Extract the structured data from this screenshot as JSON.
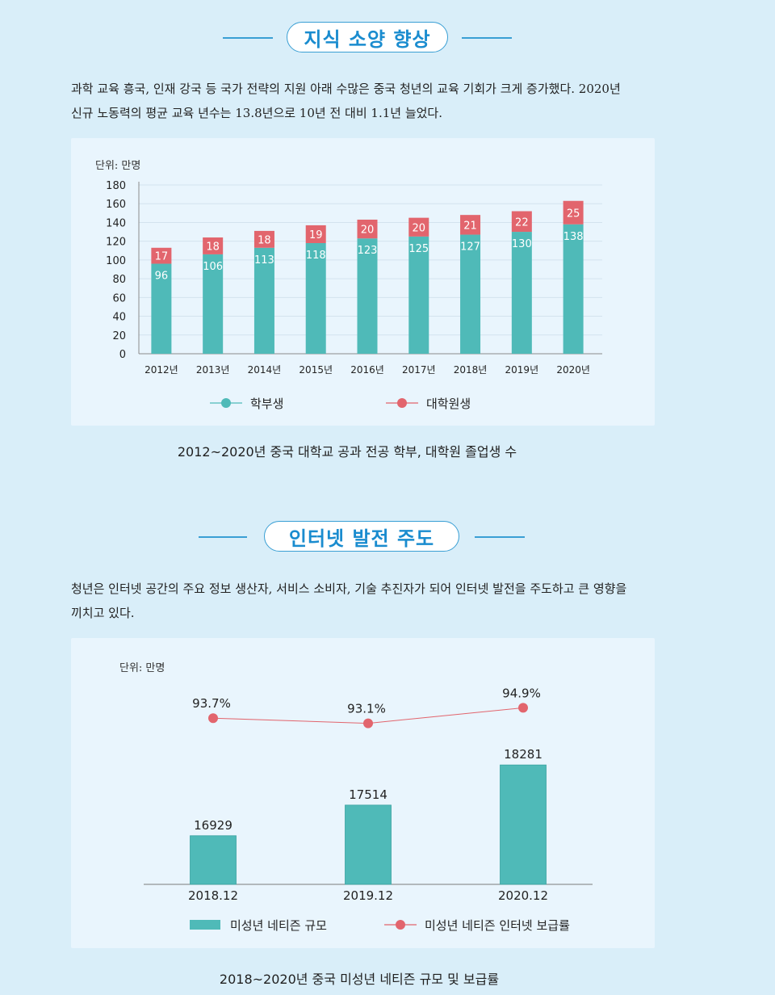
{
  "section1": {
    "title": "지식 소양 향상",
    "paragraph_lines": [
      "과학 교육 흥국, 인재 강국 등 국가 전략의 지원 아래 수많은 중국 청년의 교육 기회가 크게 증가했다. 2020년",
      "신규 노동력의 평균 교육 년수는 13.8년으로 10년 전 대비 1.1년 늘었다."
    ],
    "unit": "단위: 만명",
    "caption": "2012~2020년 중국 대학교 공과 전공 학부, 대학원 졸업생 수"
  },
  "section2": {
    "title": "인터넷 발전 주도",
    "paragraph_lines": [
      "청년은 인터넷 공간의 주요 정보 생산자, 서비스 소비자, 기술 추진자가 되어 인터넷 발전을 주도하고 큰 영향을",
      "끼치고 있다."
    ],
    "unit": "단위: 만명",
    "caption": "2018~2020년 중국 미성년 네티즌 규모 및 보급률"
  },
  "colors": {
    "teal": "#4fbab8",
    "red": "#e2656d",
    "accent_blue": "#1a8ccf"
  },
  "chart_data": [
    {
      "type": "bar",
      "stacked": true,
      "categories": [
        "2012년",
        "2013년",
        "2014년",
        "2015년",
        "2016년",
        "2017년",
        "2018년",
        "2019년",
        "2020년"
      ],
      "series": [
        {
          "name": "학부생",
          "values": [
            96,
            106,
            113,
            118,
            123,
            125,
            127,
            130,
            138
          ]
        },
        {
          "name": "대학원생",
          "values": [
            17,
            18,
            18,
            19,
            20,
            20,
            21,
            22,
            25
          ]
        }
      ],
      "ylim": [
        0,
        180
      ],
      "yticks": [
        0,
        20,
        40,
        60,
        80,
        100,
        120,
        140,
        160,
        180
      ],
      "grid": true,
      "legend": "bottom"
    },
    {
      "type": "bar",
      "categories": [
        "2018.12",
        "2019.12",
        "2020.12"
      ],
      "series": [
        {
          "name": "미성년 네티즌 규모",
          "type": "bar",
          "values": [
            16929,
            17514,
            18281
          ]
        },
        {
          "name": "미성년 네티즌 인터넷 보급률",
          "type": "line",
          "values": [
            93.7,
            93.1,
            94.9
          ],
          "labels": [
            "93.7%",
            "93.1%",
            "94.9%"
          ]
        }
      ],
      "legend": "bottom"
    }
  ]
}
